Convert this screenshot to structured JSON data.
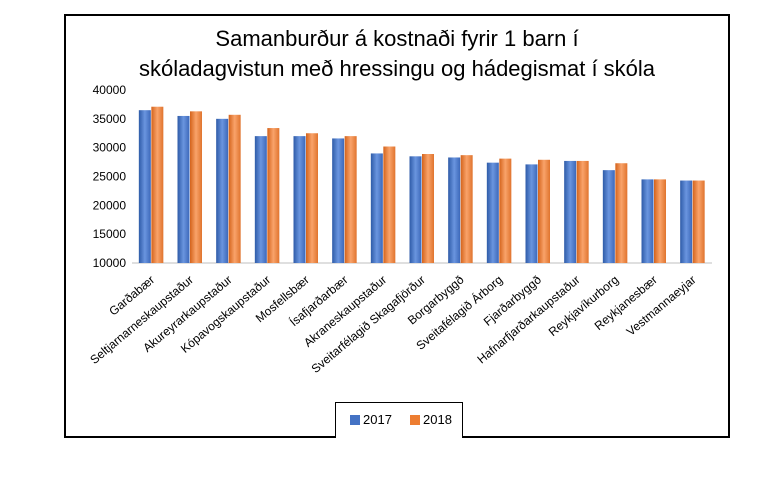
{
  "chart_data": {
    "type": "bar",
    "title_lines": [
      "Samanburður á kostnaði fyrir 1 barn í",
      "skóladagvistun með hressingu og hádegismat í skóla"
    ],
    "xlabel": "",
    "ylabel": "",
    "ylim": [
      10000,
      40000
    ],
    "yticks": [
      10000,
      15000,
      20000,
      25000,
      30000,
      35000,
      40000
    ],
    "grid": false,
    "legend_position": "bottom",
    "categories": [
      "Garðabær",
      "Seltjarnarneskaupstaður",
      "Akureyrarkaupstaður",
      "Kópavogskaupstaður",
      "Mosfellsbær",
      "Ísafjarðarbær",
      "Akraneskaupstaður",
      "Sveitarfélagið Skagafjörður",
      "Borgarbyggð",
      "Sveitafélagið Árborg",
      "Fjarðarbyggð",
      "Hafnarfjarðarkaupstaður",
      "Reykjavíkurborg",
      "Reykjanesbær",
      "Vestmannaeyjar"
    ],
    "series": [
      {
        "name": "2017",
        "color": "#4472C4",
        "values": [
          36500,
          35500,
          35000,
          32000,
          32000,
          31600,
          29000,
          28500,
          28300,
          27400,
          27100,
          27700,
          26100,
          24500,
          24300
        ]
      },
      {
        "name": "2018",
        "color": "#ED7D31",
        "values": [
          37100,
          36300,
          35700,
          33400,
          32500,
          32000,
          30200,
          28900,
          28700,
          28100,
          27900,
          27700,
          27300,
          24500,
          24300
        ]
      }
    ]
  }
}
